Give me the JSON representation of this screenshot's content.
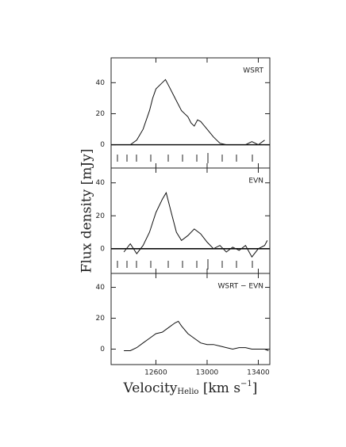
{
  "y_label": "Flux density [mJy]",
  "chart_data": [
    {
      "type": "line",
      "label": "WSRT",
      "color": "#111",
      "zero_line": true,
      "xlim": [
        12250,
        13490
      ],
      "xticks": [
        12600,
        13000,
        13400
      ],
      "ylim": [
        -15,
        56
      ],
      "yticks": [
        0,
        20,
        40
      ],
      "x": [
        12400,
        12450,
        12500,
        12550,
        12575,
        12600,
        12650,
        12675,
        12700,
        12750,
        12800,
        12850,
        12875,
        12900,
        12925,
        12950,
        13000,
        13050,
        13100,
        13150,
        13200,
        13300,
        13350,
        13400,
        13450
      ],
      "values": [
        0,
        3,
        10,
        22,
        30,
        36,
        40,
        42,
        38,
        30,
        22,
        18,
        14,
        12,
        16,
        15,
        10,
        5,
        1,
        0,
        0,
        0,
        2,
        0,
        3
      ]
    },
    {
      "type": "line",
      "label": "EVN",
      "color": "#111",
      "zero_line": true,
      "xlim": [
        12250,
        13490
      ],
      "xticks": [
        12600,
        13000,
        13400
      ],
      "ylim": [
        -15,
        49
      ],
      "yticks": [
        0,
        20,
        40
      ],
      "x": [
        12350,
        12400,
        12450,
        12500,
        12550,
        12600,
        12650,
        12680,
        12720,
        12760,
        12800,
        12850,
        12900,
        12950,
        13000,
        13050,
        13100,
        13150,
        13200,
        13250,
        13300,
        13350,
        13400,
        13450,
        13470
      ],
      "values": [
        -2,
        3,
        -3,
        2,
        10,
        22,
        30,
        34,
        22,
        10,
        5,
        8,
        12,
        9,
        4,
        0,
        2,
        -2,
        1,
        -1,
        2,
        -5,
        0,
        2,
        5
      ]
    },
    {
      "type": "line",
      "label": "WSRT − EVN",
      "color": "#111",
      "zero_line": false,
      "xlim": [
        12250,
        13490
      ],
      "xticks": [
        12600,
        13000,
        13400
      ],
      "ylim": [
        -10,
        49
      ],
      "yticks": [
        0,
        20,
        40
      ],
      "x_label": {
        "text": "Velocity",
        "sub": "Helio",
        "unit": " [km s",
        "sup": "−1",
        "end": "]"
      },
      "x": [
        12350,
        12400,
        12450,
        12500,
        12550,
        12600,
        12650,
        12700,
        12750,
        12775,
        12800,
        12850,
        12900,
        12950,
        13000,
        13050,
        13100,
        13150,
        13200,
        13250,
        13300,
        13350,
        13400,
        13450,
        13480
      ],
      "values": [
        -1,
        -1,
        1,
        4,
        7,
        10,
        11,
        14,
        17,
        18,
        15,
        10,
        7,
        4,
        3,
        3,
        2,
        1,
        0,
        1,
        1,
        0,
        0,
        0,
        -1
      ]
    }
  ]
}
